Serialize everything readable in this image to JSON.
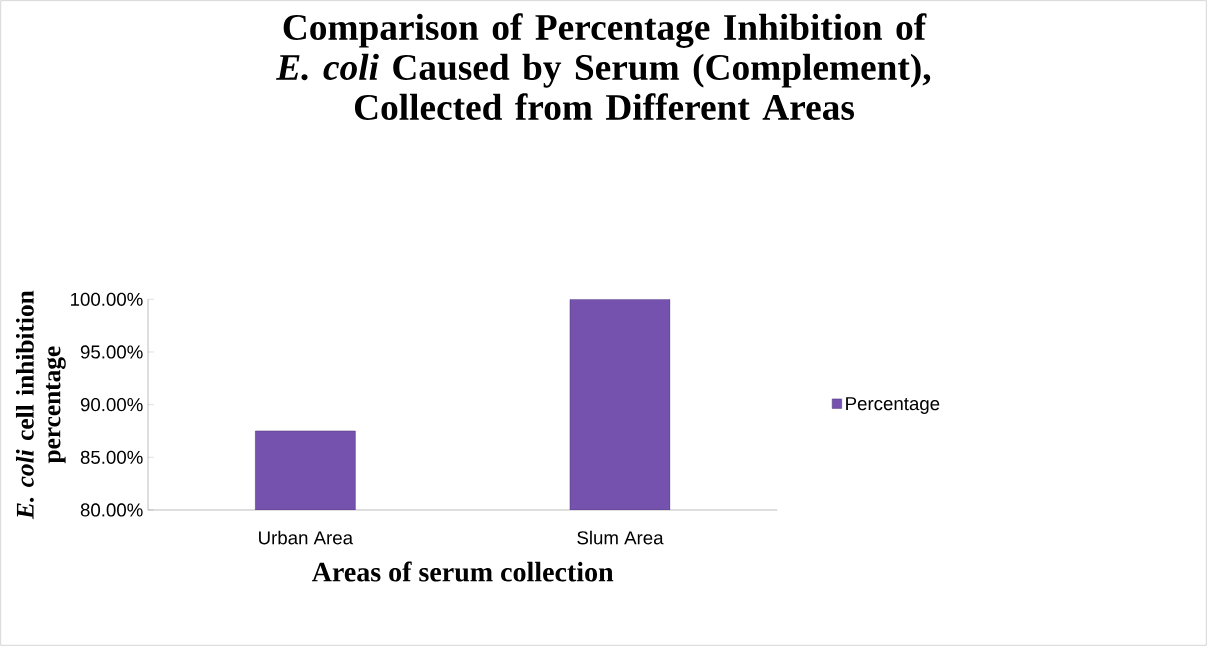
{
  "chart_data": {
    "type": "bar",
    "title": "Comparison of Percentage Inhibition of *E. coli* Caused by Serum (Complement), Collected from Different Areas",
    "xlabel": "Areas of serum collection",
    "ylabel": "*E. coli* cell inhibition percentage",
    "categories": [
      "Urban Area",
      "Slum Area"
    ],
    "series": [
      {
        "name": "Percentage",
        "color": "#7452ad",
        "values": [
          87.5,
          100
        ]
      }
    ],
    "ylim": [
      80,
      100
    ],
    "yticks": [
      {
        "value": 80,
        "label": "80.00%"
      },
      {
        "value": 85,
        "label": "85.00%"
      },
      {
        "value": 90,
        "label": "90.00%"
      },
      {
        "value": 95,
        "label": "95.00%"
      },
      {
        "value": 100,
        "label": "100.00%"
      }
    ],
    "grid": false,
    "legend": "right"
  }
}
